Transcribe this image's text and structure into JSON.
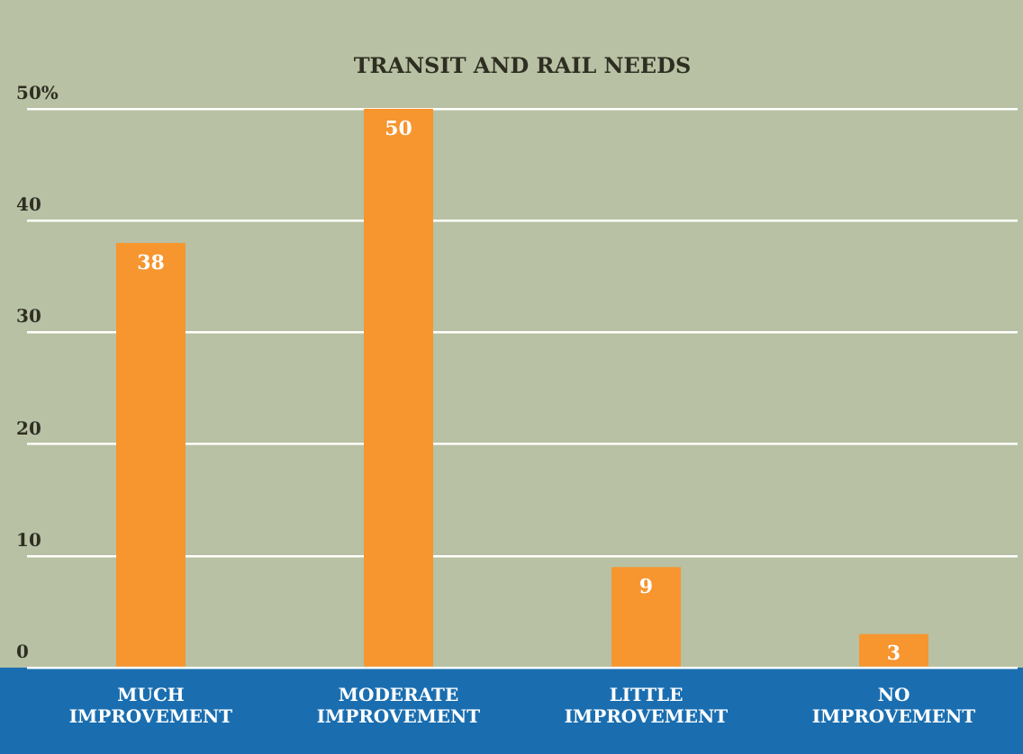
{
  "chart_data": {
    "type": "bar",
    "title": "TRANSIT AND RAIL NEEDS",
    "categories": [
      "MUCH IMPROVEMENT",
      "MODERATE IMPROVEMENT",
      "LITTLE IMPROVEMENT",
      "NO IMPROVEMENT"
    ],
    "values": [
      38,
      50,
      9,
      3
    ],
    "color": "#f7952f",
    "ylim": [
      0,
      50
    ],
    "yticks": [
      0,
      10,
      20,
      30,
      40,
      {
        "value": 50,
        "label": "50%"
      }
    ],
    "grid": "y",
    "data_labels": true
  }
}
